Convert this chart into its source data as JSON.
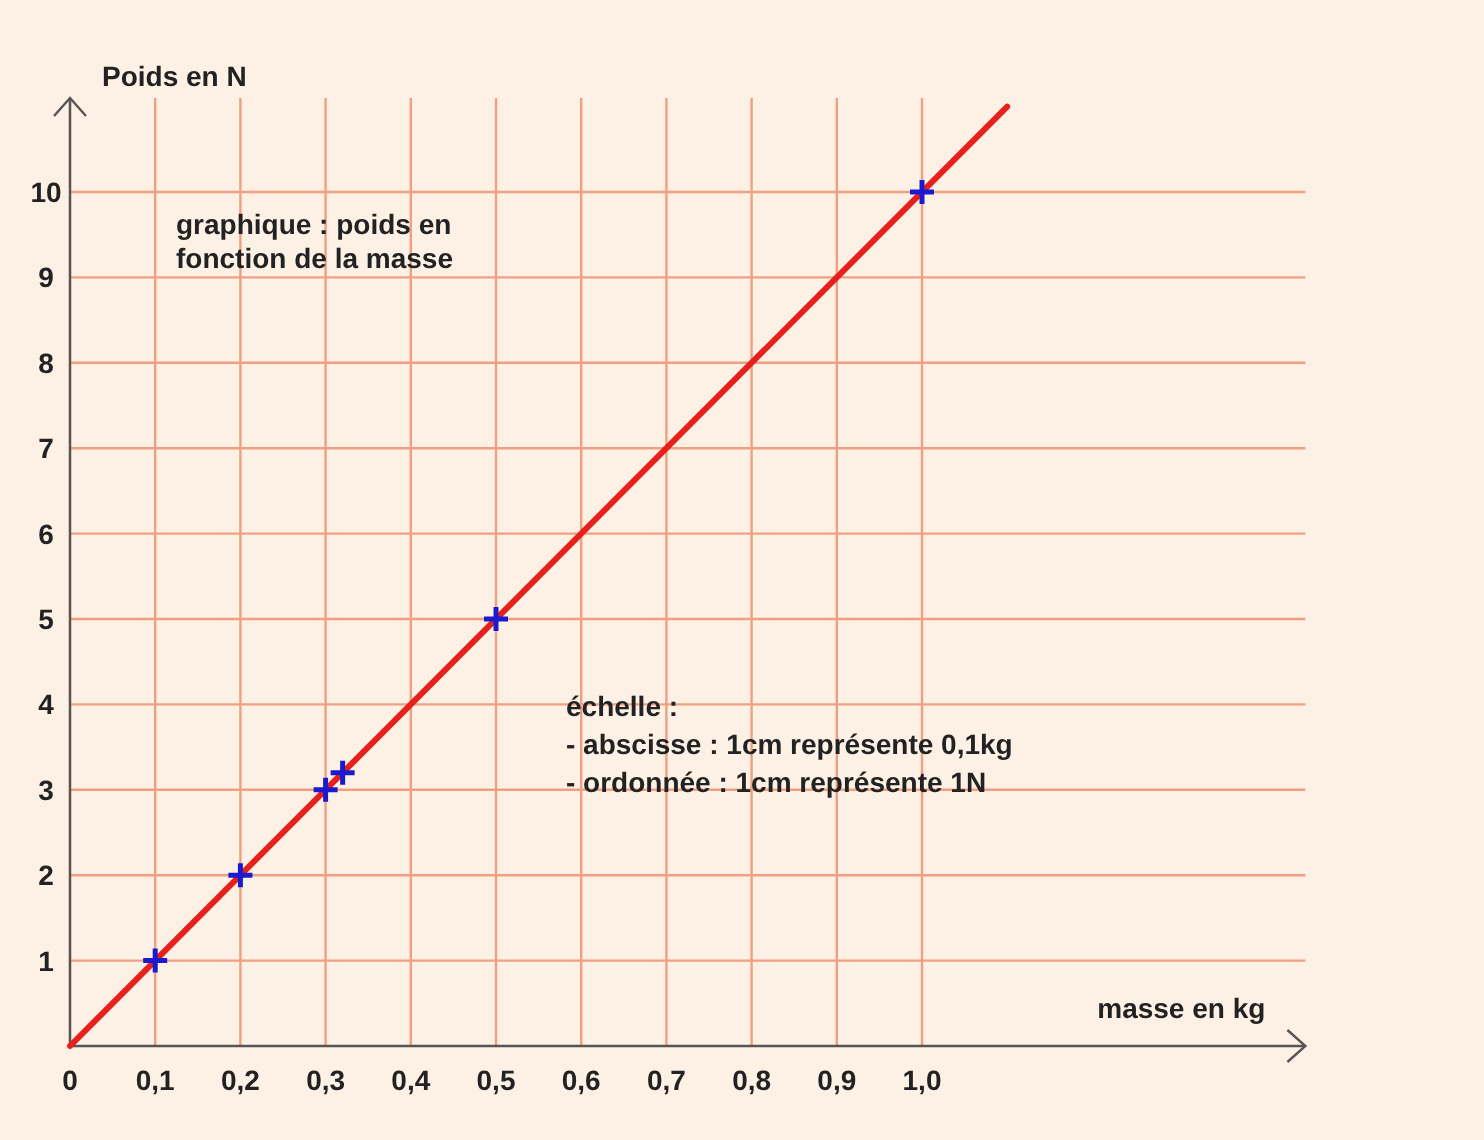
{
  "chart_data": {
    "type": "scatter",
    "xlabel": "masse en kg",
    "ylabel": "Poids en N",
    "xlim": [
      0,
      1.45
    ],
    "ylim": [
      0,
      11.1
    ],
    "xticks": [
      {
        "value": 0,
        "label": "0"
      },
      {
        "value": 0.1,
        "label": "0,1"
      },
      {
        "value": 0.2,
        "label": "0,2"
      },
      {
        "value": 0.3,
        "label": "0,3"
      },
      {
        "value": 0.4,
        "label": "0,4"
      },
      {
        "value": 0.5,
        "label": "0,5"
      },
      {
        "value": 0.6,
        "label": "0,6"
      },
      {
        "value": 0.7,
        "label": "0,7"
      },
      {
        "value": 0.8,
        "label": "0,8"
      },
      {
        "value": 0.9,
        "label": "0,9"
      },
      {
        "value": 1.0,
        "label": "1,0"
      }
    ],
    "yticks": [
      1,
      2,
      3,
      4,
      5,
      6,
      7,
      8,
      9,
      10
    ],
    "grid": true,
    "series": [
      {
        "type": "line",
        "color": "#e8201c",
        "x": [
          0,
          1.1
        ],
        "values": [
          0,
          11
        ]
      },
      {
        "color": "#1a1ad0",
        "x": [
          0.1,
          0.2,
          0.3,
          0.32,
          0.5,
          1.0
        ],
        "values": [
          1,
          2,
          3,
          3.2,
          5,
          10
        ],
        "marker": "cross"
      }
    ],
    "annotations": [
      "graphique : poids en fonction de la masse",
      "échelle :",
      "- abscisse : 1cm représente 0,1kg",
      "- ordonnée : 1cm représente 1N"
    ]
  }
}
